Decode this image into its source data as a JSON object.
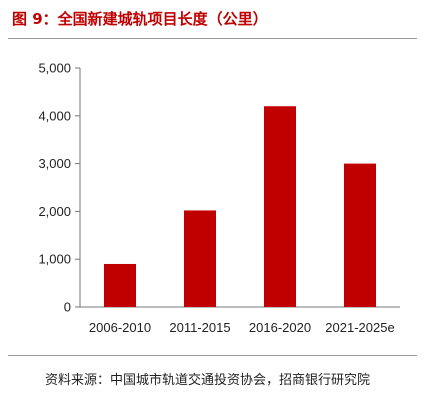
{
  "header": {
    "title": "图 9：全国新建城轨项目长度（公里）"
  },
  "footer": {
    "source": "资料来源：中国城市轨道交通投资协会，招商银行研究院"
  },
  "chart_data": {
    "type": "bar",
    "categories": [
      "2006-2010",
      "2011-2015",
      "2016-2020",
      "2021-2025e"
    ],
    "values": [
      900,
      2020,
      4200,
      3000
    ],
    "title": "",
    "xlabel": "",
    "ylabel": "",
    "ylim": [
      0,
      5000
    ],
    "yticks": [
      0,
      1000,
      2000,
      3000,
      4000,
      5000
    ],
    "ytick_labels": [
      "0",
      "1,000",
      "2,000",
      "3,000",
      "4,000",
      "5,000"
    ],
    "grid": false,
    "bar_color": "#c00000"
  }
}
